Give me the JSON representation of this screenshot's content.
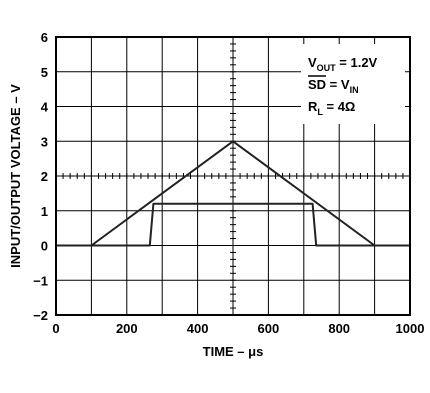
{
  "chart_data": {
    "type": "line",
    "title": "",
    "xlabel": "TIME – μs",
    "ylabel": "INPUT/OUTPUT VOLTAGE – V",
    "xlim": [
      0,
      1000
    ],
    "ylim": [
      -2,
      6
    ],
    "x_ticks": [
      0,
      200,
      400,
      600,
      800,
      1000
    ],
    "y_ticks": [
      -2,
      -1,
      0,
      1,
      2,
      3,
      4,
      5,
      6
    ],
    "x_tick_labels": [
      "0",
      "200",
      "400",
      "600",
      "800",
      "1000"
    ],
    "y_tick_labels": [
      "−2",
      "−1",
      "0",
      "1",
      "2",
      "3",
      "4",
      "5",
      "6"
    ],
    "grid": true,
    "series": [
      {
        "role": "input",
        "x": [
          0,
          100,
          500,
          900,
          1000
        ],
        "y": [
          0,
          0,
          3,
          0,
          0
        ]
      },
      {
        "role": "output",
        "x": [
          0,
          265,
          275,
          725,
          735,
          1000
        ],
        "y": [
          0,
          0,
          1.2,
          1.2,
          0,
          0
        ]
      }
    ],
    "annotations": {
      "line1": {
        "main": "V",
        "sub": "OUT",
        "rest": " = 1.2V"
      },
      "line2": {
        "main": "SD",
        "rest": " = V",
        "sub": "IN"
      },
      "line3": {
        "main": "R",
        "sub": "L",
        "rest": " = 4Ω"
      }
    },
    "colors": {
      "line": "#222222",
      "grid": "#000000",
      "background": "#ffffff"
    }
  }
}
